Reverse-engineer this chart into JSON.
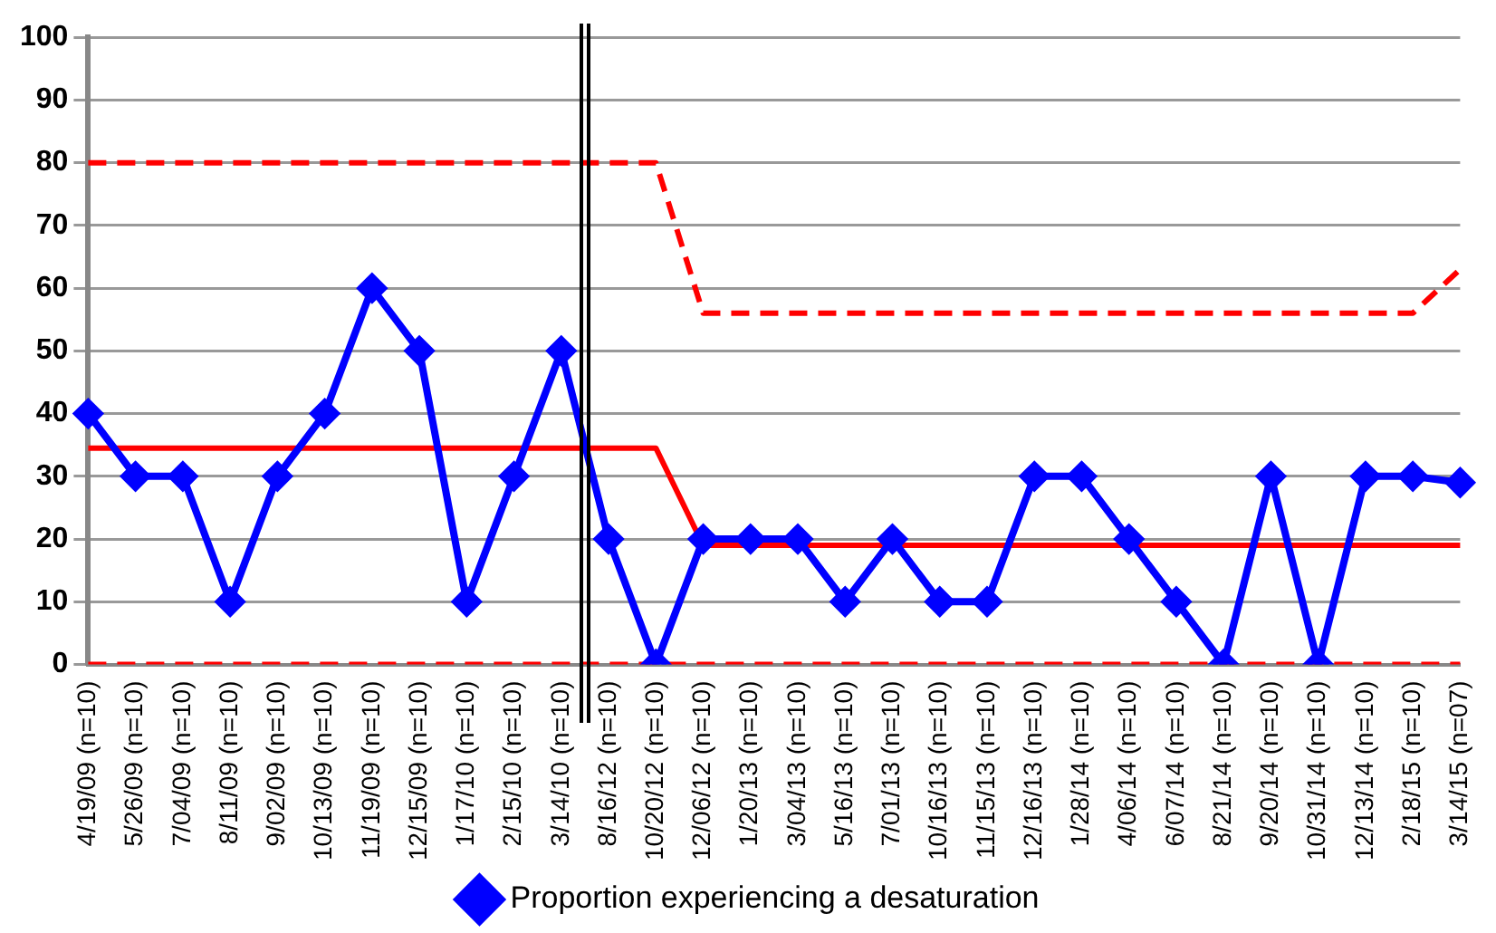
{
  "chart_data": {
    "type": "line",
    "categories": [
      "4/19/09 (n=10)",
      "5/26/09 (n=10)",
      "7/04/09 (n=10)",
      "8/11/09 (n=10)",
      "9/02/09 (n=10)",
      "10/13/09 (n=10)",
      "11/19/09 (n=10)",
      "12/15/09 (n=10)",
      "1/17/10 (n=10)",
      "2/15/10 (n=10)",
      "3/14/10 (n=10)",
      "8/16/12 (n=10)",
      "10/20/12 (n=10)",
      "12/06/12 (n=10)",
      "1/20/13 (n=10)",
      "3/04/13 (n=10)",
      "5/16/13 (n=10)",
      "7/01/13 (n=10)",
      "10/16/13 (n=10)",
      "11/15/13 (n=10)",
      "12/16/13 (n=10)",
      "1/28/14 (n=10)",
      "4/06/14 (n=10)",
      "6/07/14 (n=10)",
      "8/21/14 (n=10)",
      "9/20/14 (n=10)",
      "10/31/14 (n=10)",
      "12/13/14 (n=10)",
      "2/18/15 (n=10)",
      "3/14/15 (n=07)"
    ],
    "series": [
      {
        "name": "Proportion experiencing a desaturation",
        "color": "#0000ff",
        "marker": "diamond",
        "line_style": "solid",
        "values": [
          40,
          30,
          30,
          10,
          30,
          40,
          60,
          50,
          10,
          30,
          50,
          20,
          0,
          20,
          20,
          20,
          10,
          20,
          10,
          10,
          30,
          30,
          20,
          10,
          0,
          30,
          0,
          30,
          30,
          29
        ]
      },
      {
        "color": "#ff0000",
        "marker": "none",
        "line_style": "solid",
        "values": [
          34.5,
          34.5,
          34.5,
          34.5,
          34.5,
          34.5,
          34.5,
          34.5,
          34.5,
          34.5,
          34.5,
          34.5,
          34.5,
          19,
          19,
          19,
          19,
          19,
          19,
          19,
          19,
          19,
          19,
          19,
          19,
          19,
          19,
          19,
          19,
          19
        ]
      },
      {
        "color": "#ff0000",
        "marker": "none",
        "line_style": "dashed",
        "values": [
          80,
          80,
          80,
          80,
          80,
          80,
          80,
          80,
          80,
          80,
          80,
          80,
          80,
          56,
          56,
          56,
          56,
          56,
          56,
          56,
          56,
          56,
          56,
          56,
          56,
          56,
          56,
          56,
          56,
          63
        ]
      },
      {
        "color": "#ff0000",
        "marker": "none",
        "line_style": "dashed",
        "values": [
          0,
          0,
          0,
          0,
          0,
          0,
          0,
          0,
          0,
          0,
          0,
          0,
          0,
          0,
          0,
          0,
          0,
          0,
          0,
          0,
          0,
          0,
          0,
          0,
          0,
          0,
          0,
          0,
          0,
          0
        ]
      }
    ],
    "ylim": [
      0,
      100
    ],
    "yticks": [
      0,
      10,
      20,
      30,
      40,
      50,
      60,
      70,
      80,
      90,
      100
    ],
    "grid": "y",
    "legend": "bottom"
  }
}
